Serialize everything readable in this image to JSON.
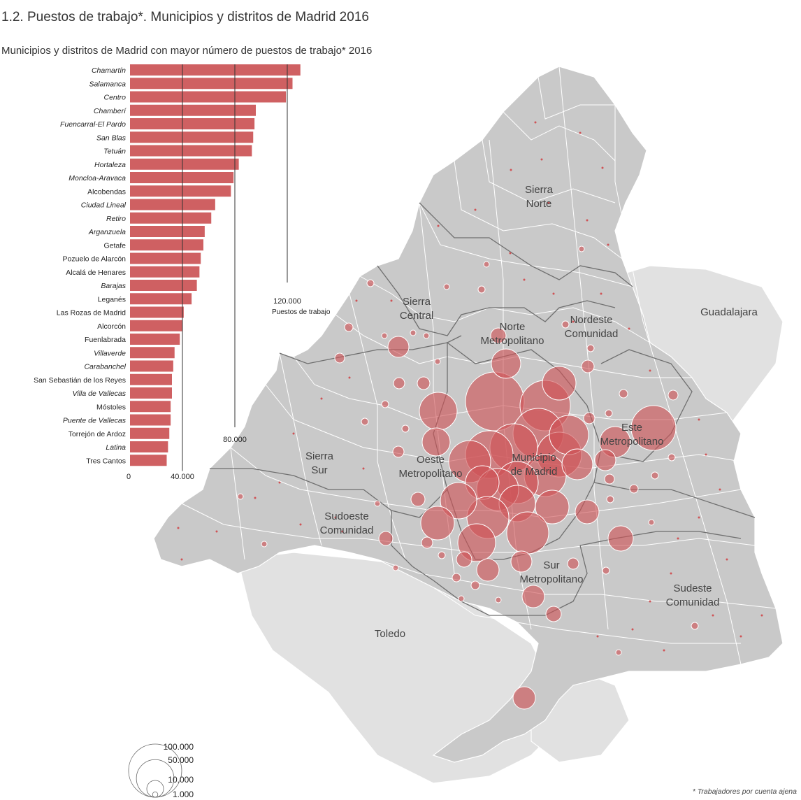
{
  "title": "1.2. Puestos de trabajo*. Municipios y distritos de Madrid 2016",
  "subtitle": "Municipios y distritos de Madrid con mayor número de puestos de trabajo* 2016",
  "footnote": "* Trabajadores por cuenta ajena",
  "colors": {
    "bar": "#cf6062",
    "bubble": "#cf5356",
    "region_in": "#c9c9c9",
    "region_out": "#e1e1e1"
  },
  "chart_data": {
    "type": "bar",
    "orientation": "horizontal",
    "categories": [
      "Chamartín",
      "Salamanca",
      "Centro",
      "Chamberí",
      "Fuencarral-El Pardo",
      "San Blas",
      "Tetuán",
      "Hortaleza",
      "Moncloa-Aravaca",
      "Alcobendas",
      "Ciudad Lineal",
      "Retiro",
      "Arganzuela",
      "Getafe",
      "Pozuelo de Alarcón",
      "Alcalá de Henares",
      "Barajas",
      "Leganés",
      "Las Rozas de Madrid",
      "Alcorcón",
      "Fuenlabrada",
      "Villaverde",
      "Carabanchel",
      "San Sebastián de los Reyes",
      "Villa de Vallecas",
      "Móstoles",
      "Puente de Vallecas",
      "Torrejón de Ardoz",
      "Latina",
      "Tres Cantos"
    ],
    "italic": [
      true,
      true,
      true,
      true,
      true,
      true,
      true,
      true,
      true,
      false,
      true,
      true,
      true,
      false,
      false,
      false,
      true,
      false,
      false,
      false,
      false,
      true,
      true,
      false,
      true,
      false,
      true,
      false,
      true,
      false
    ],
    "values": [
      130000,
      124000,
      119000,
      96000,
      95000,
      94000,
      93000,
      83000,
      79000,
      77000,
      65000,
      62000,
      57000,
      56000,
      54000,
      53000,
      51000,
      47000,
      41000,
      40000,
      38000,
      34000,
      33000,
      32000,
      32000,
      31000,
      31000,
      30000,
      29000,
      28000
    ],
    "xlim": [
      0,
      140000
    ],
    "tick_labels": [
      "0",
      "40.000",
      "80.000",
      "120.000"
    ],
    "tick_values": [
      0,
      40000,
      80000,
      120000
    ],
    "axis_note": "Puestos de trabajo",
    "grid": true
  },
  "map": {
    "region_labels": [
      {
        "lines": [
          "Sierra",
          "Norte"
        ]
      },
      {
        "lines": [
          "Sierra",
          "Central"
        ]
      },
      {
        "lines": [
          "Norte",
          "Metropolitano"
        ]
      },
      {
        "lines": [
          "Nordeste",
          "Comunidad"
        ]
      },
      {
        "lines": [
          "Guadalajara"
        ]
      },
      {
        "lines": [
          "Este",
          "Metropolitano"
        ]
      },
      {
        "lines": [
          "Municipio",
          "de Madrid"
        ]
      },
      {
        "lines": [
          "Oeste",
          "Metropolitano"
        ]
      },
      {
        "lines": [
          "Sierra",
          "Sur"
        ]
      },
      {
        "lines": [
          "Sudoeste",
          "Comunidad"
        ]
      },
      {
        "lines": [
          "Sur",
          "Metropolitano"
        ]
      },
      {
        "lines": [
          "Sudeste",
          "Comunidad"
        ]
      },
      {
        "lines": [
          "Toledo"
        ]
      }
    ]
  },
  "legend": {
    "values": [
      100000,
      50000,
      10000,
      1000
    ],
    "labels": [
      "100.000",
      "50.000",
      "10.000",
      "1.000"
    ]
  }
}
